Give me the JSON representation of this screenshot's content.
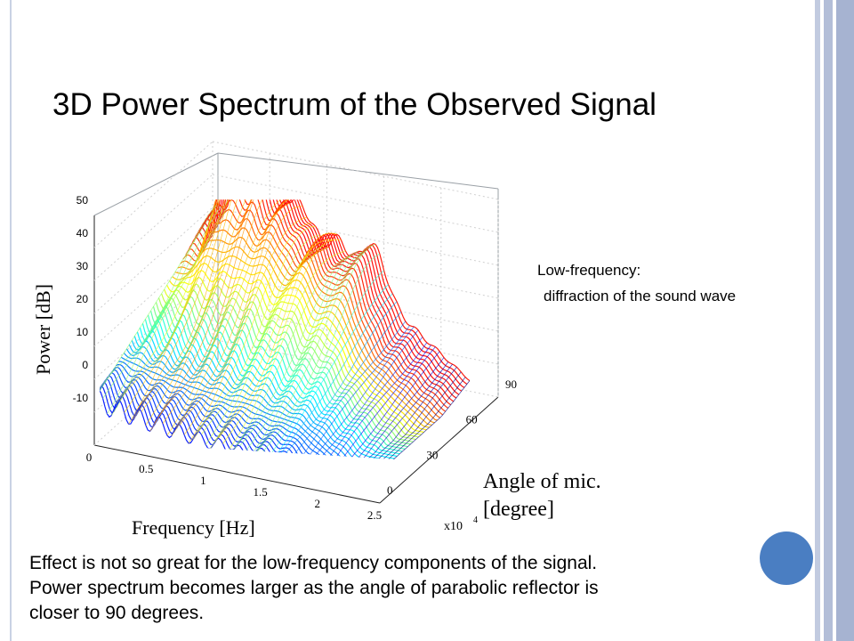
{
  "slide": {
    "title": "3D Power Spectrum of the Observed Signal",
    "note_line1": "Low-frequency:",
    "note_line2": "diffraction of the sound wave",
    "caption": [
      "Effect is not so great for the low-frequency components of the signal.",
      "Power spectrum becomes larger as the angle of parabolic reflector is",
      "closer to 90 degrees."
    ]
  },
  "chart_data": {
    "type": "surface",
    "title": "",
    "xlabel": "Frequency [Hz]",
    "xscale_label": "x10",
    "xscale_exp": "4",
    "ylabel_line1": "Angle of mic.",
    "ylabel_line2": "[degree]",
    "zlabel": "Power [dB]",
    "x_ticks": [
      "0",
      "0.5",
      "1",
      "1.5",
      "2",
      "2.5"
    ],
    "y_ticks": [
      "0",
      "30",
      "60",
      "90"
    ],
    "z_ticks": [
      "-10",
      "0",
      "10",
      "20",
      "30",
      "40",
      "50"
    ],
    "xlim": [
      0,
      25000
    ],
    "ylim": [
      0,
      90
    ],
    "zlim": [
      -10,
      50
    ],
    "colormap": "jet",
    "grid": true,
    "approx_peaks": [
      {
        "frequency": 3000,
        "angle": 90,
        "power": 48
      },
      {
        "frequency": 5500,
        "angle": 80,
        "power": 42
      },
      {
        "frequency": 8000,
        "angle": 75,
        "power": 40
      },
      {
        "frequency": 11000,
        "angle": 70,
        "power": 38
      },
      {
        "frequency": 14000,
        "angle": 80,
        "power": 36
      }
    ]
  }
}
